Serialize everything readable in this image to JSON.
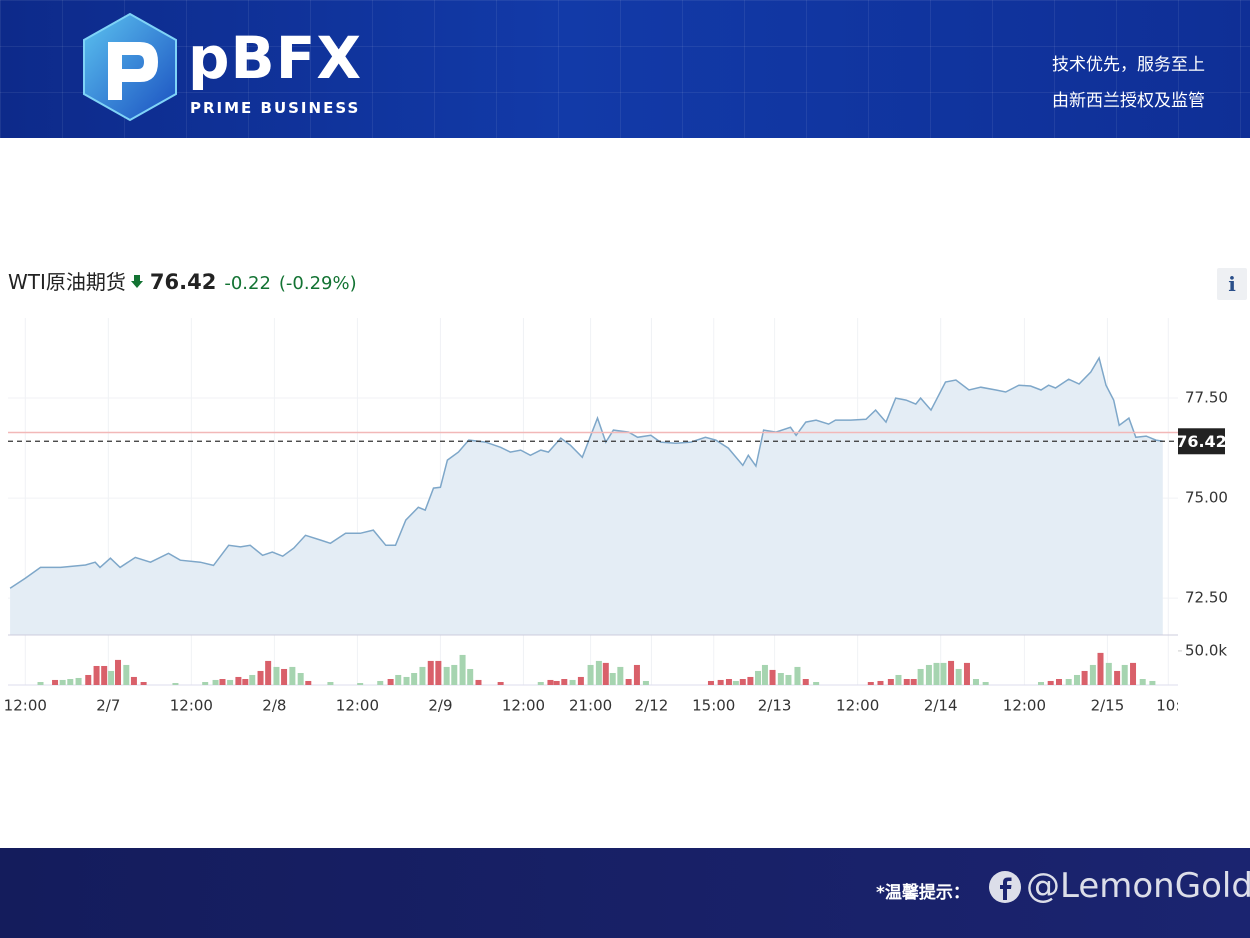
{
  "header": {
    "brand": "pBFX",
    "brand_sub": "PRIME BUSINESS",
    "slogan_1": "技术优先，服务至上",
    "slogan_2": "由新西兰授权及监管"
  },
  "chart_data": {
    "type": "line",
    "title": "WTI原油期货",
    "last_price": 76.42,
    "change": -0.22,
    "change_pct": "(-0.29%)",
    "previous_close": 76.64,
    "info_button": "i",
    "color": "#7ea7c9",
    "fill_color": "#e4edf5",
    "x": [
      -2.2,
      0,
      2.2,
      5.1,
      8.7,
      10.1,
      10.8,
      12.3,
      13.7,
      15.9,
      18.1,
      20.7,
      22.4,
      25.3,
      27.2,
      29.4,
      31.1,
      32.5,
      34.3,
      35.7,
      37.2,
      38.8,
      40.5,
      42.7,
      44.1,
      46.3,
      48.4,
      50.3,
      52.1,
      53.5,
      55.0,
      56.8,
      57.8,
      59.0,
      60.0,
      61.0,
      62.6,
      64.1,
      66.5,
      68.7,
      70.1,
      71.6,
      73.0,
      74.5,
      75.6,
      77.4,
      78.8,
      80.5,
      82.7,
      83.9,
      85.0,
      87.2,
      88.5,
      90.4,
      91.8,
      94.0,
      96.2,
      98.3,
      99.8,
      101.6,
      103.7,
      104.5,
      105.6,
      106.7,
      108.5,
      110.6,
      111.4,
      112.8,
      114.3,
      116.1,
      117.1,
      119.3,
      121.5,
      122.9,
      124.4,
      125.8,
      127.3,
      128.7,
      129.4,
      130.9,
      133.0,
      134.5,
      136.4,
      138.1,
      140.3,
      141.7,
      143.6,
      145.3,
      146.8,
      147.9,
      148.9,
      150.8,
      152.3,
      154.0,
      155.2,
      156.2,
      157.3,
      158.1,
      159.5,
      160.5,
      162.0,
      163.4,
      164.4
    ],
    "values": [
      72.75,
      73,
      73.27,
      73.27,
      73.33,
      73.4,
      73.27,
      73.5,
      73.27,
      73.52,
      73.4,
      73.62,
      73.45,
      73.4,
      73.32,
      73.82,
      73.78,
      73.82,
      73.57,
      73.65,
      73.55,
      73.75,
      74.07,
      73.95,
      73.87,
      74.12,
      74.12,
      74.2,
      73.82,
      73.82,
      74.45,
      74.77,
      74.7,
      75.25,
      75.27,
      75.95,
      76.15,
      76.45,
      76.4,
      76.27,
      76.15,
      76.2,
      76.07,
      76.2,
      76.15,
      76.5,
      76.32,
      76.02,
      77.0,
      76.4,
      76.7,
      76.65,
      76.52,
      76.57,
      76.4,
      76.37,
      76.4,
      76.52,
      76.45,
      76.25,
      75.82,
      76.07,
      75.8,
      76.7,
      76.65,
      76.77,
      76.57,
      76.9,
      76.95,
      76.85,
      76.95,
      76.95,
      76.97,
      77.2,
      76.9,
      77.5,
      77.45,
      77.35,
      77.5,
      77.2,
      77.9,
      77.95,
      77.7,
      77.77,
      77.7,
      77.65,
      77.82,
      77.8,
      77.7,
      77.82,
      77.75,
      77.97,
      77.85,
      78.15,
      78.5,
      77.82,
      77.45,
      76.82,
      77.0,
      76.52,
      76.55,
      76.45,
      76.42
    ],
    "xlim": [
      -2.5,
      166.6
    ],
    "xticks": [
      {
        "value": 0,
        "label": "12:00"
      },
      {
        "value": 12,
        "label": "2/7"
      },
      {
        "value": 24,
        "label": "12:00"
      },
      {
        "value": 36,
        "label": "2/8"
      },
      {
        "value": 48,
        "label": "12:00"
      },
      {
        "value": 60,
        "label": "2/9"
      },
      {
        "value": 72,
        "label": "12:00"
      },
      {
        "value": 81.7,
        "label": "21:00"
      },
      {
        "value": 90.5,
        "label": "2/12"
      },
      {
        "value": 99.5,
        "label": "15:00"
      },
      {
        "value": 108.3,
        "label": "2/13"
      },
      {
        "value": 120.3,
        "label": "12:00"
      },
      {
        "value": 132.3,
        "label": "2/14"
      },
      {
        "value": 144.4,
        "label": "12:00"
      },
      {
        "value": 156.4,
        "label": "2/15"
      },
      {
        "value": 165.2,
        "label": "10:"
      }
    ],
    "ylim": [
      71.58,
      79.5
    ],
    "yticks": [
      {
        "value": 72.5,
        "label": "72.50"
      },
      {
        "value": 75,
        "label": "75.00"
      },
      {
        "value": 77.5,
        "label": "77.50"
      }
    ],
    "grid": true,
    "volume_up": {
      "color": "#a6d4b0",
      "x": [
        2.2,
        5.4,
        6.5,
        7.7,
        12.4,
        14.6,
        21.7,
        26.0,
        27.5,
        29.6,
        32.8,
        36.3,
        38.6,
        39.8,
        44.1,
        48.4,
        51.3,
        53.9,
        55.1,
        56.2,
        57.4,
        60.9,
        62.0,
        63.2,
        64.3,
        74.5,
        79.1,
        81.7,
        82.9,
        84.9,
        86.0,
        89.7,
        102.7,
        105.9,
        106.9,
        109.2,
        110.3,
        111.6,
        114.3,
        126.2,
        129.4,
        130.6,
        131.7,
        132.7,
        134.9,
        137.4,
        138.8,
        146.8,
        150.8,
        152.0,
        154.3,
        156.6,
        158.9,
        161.5,
        162.9
      ],
      "values": [
        4400,
        7400,
        8800,
        10300,
        20600,
        29400,
        2900,
        4400,
        7400,
        7400,
        14700,
        26500,
        26500,
        17600,
        4400,
        2900,
        5900,
        14700,
        11800,
        17600,
        26500,
        26500,
        29400,
        44100,
        23500,
        4400,
        7400,
        29400,
        35300,
        17600,
        26500,
        5900,
        5900,
        20600,
        29400,
        17600,
        14700,
        26500,
        4400,
        14700,
        23500,
        29400,
        32400,
        32400,
        23500,
        8800,
        4400,
        4400,
        8800,
        14700,
        29400,
        32400,
        29400,
        8800,
        5900
      ]
    },
    "volume_down": {
      "color": "#d9606a",
      "x": [
        4.3,
        9.1,
        10.3,
        11.4,
        13.4,
        15.7,
        17.1,
        28.5,
        30.8,
        31.8,
        34.0,
        35.1,
        37.4,
        40.9,
        52.8,
        58.6,
        59.7,
        65.5,
        68.7,
        75.9,
        76.8,
        77.9,
        80.3,
        83.9,
        87.2,
        88.4,
        99.1,
        100.5,
        101.7,
        103.7,
        104.8,
        108.0,
        112.8,
        122.2,
        123.6,
        125.1,
        127.4,
        128.4,
        133.8,
        136.1,
        148.2,
        149.4,
        153.1,
        155.4,
        157.8,
        160.1
      ],
      "values": [
        7400,
        14700,
        27900,
        27900,
        36800,
        11800,
        4400,
        8800,
        11800,
        8800,
        20600,
        35300,
        23500,
        5900,
        8800,
        35300,
        35300,
        7400,
        4400,
        7400,
        5900,
        8800,
        11800,
        32400,
        8800,
        29400,
        5900,
        7400,
        8800,
        8800,
        11800,
        22100,
        8800,
        4400,
        5900,
        8800,
        8800,
        8800,
        35300,
        32400,
        5900,
        8800,
        20600,
        47100,
        20600,
        32400
      ]
    },
    "volume_lim": [
      0,
      66000
    ],
    "volume_ticks": [
      {
        "value": 50000,
        "label": "50.0k"
      }
    ]
  },
  "footer": {
    "notice": "*温馨提示：",
    "watermark": "@LemonGold"
  }
}
